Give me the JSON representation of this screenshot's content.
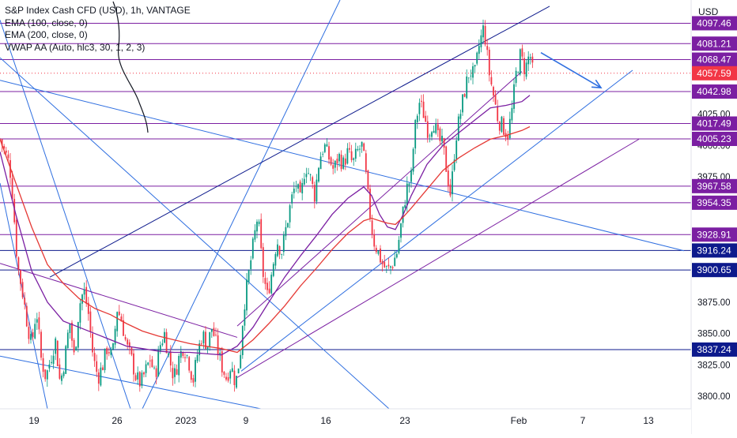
{
  "chart_data": {
    "type": "candlestick",
    "symbol_line": "S&P Index Cash CFD (USD), 1h, VANTAGE",
    "indicators": [
      {
        "label": "EMA (100, close, 0)",
        "color": "#7b1fa2"
      },
      {
        "label": "EMA (200, close, 0)",
        "color": "#e53935"
      },
      {
        "label": "VWAP AA (Auto, hlc3, 30, 1, 2, 3)",
        "color": "#2962ff"
      }
    ],
    "currency": "USD",
    "ylim": [
      3790,
      4116
    ],
    "y_ticks": [
      {
        "value": 3800,
        "label": "3800.00"
      },
      {
        "value": 3825,
        "label": "3825.00"
      },
      {
        "value": 3850,
        "label": "3850.00"
      },
      {
        "value": 3875,
        "label": "3875.00"
      },
      {
        "value": 3975,
        "label": "3975.00"
      },
      {
        "value": 4000,
        "label": "4000.00"
      },
      {
        "value": 4025,
        "label": "4025.00"
      }
    ],
    "x_ticks": [
      "19",
      "26",
      "2023",
      "9",
      "16",
      "23",
      "Feb",
      "7",
      "13"
    ],
    "price_levels": [
      {
        "value": 4097.46,
        "label": "4097.46",
        "kind": "purple"
      },
      {
        "value": 4081.21,
        "label": "4081.21",
        "kind": "purple"
      },
      {
        "value": 4068.47,
        "label": "4068.47",
        "kind": "purple"
      },
      {
        "value": 4057.59,
        "label": "4057.59",
        "kind": "current"
      },
      {
        "value": 4042.98,
        "label": "4042.98",
        "kind": "purple"
      },
      {
        "value": 4017.49,
        "label": "4017.49",
        "kind": "purple"
      },
      {
        "value": 4005.23,
        "label": "4005.23",
        "kind": "purple"
      },
      {
        "value": 3967.58,
        "label": "3967.58",
        "kind": "purple"
      },
      {
        "value": 3954.35,
        "label": "3954.35",
        "kind": "purple"
      },
      {
        "value": 3928.91,
        "label": "3928.91",
        "kind": "purple"
      },
      {
        "value": 3916.24,
        "label": "3916.24",
        "kind": "navy"
      },
      {
        "value": 3900.65,
        "label": "3900.65",
        "kind": "navy"
      },
      {
        "value": 3837.24,
        "label": "3837.24",
        "kind": "navy"
      }
    ],
    "price_series": [
      {
        "x": 0,
        "close": 4005
      },
      {
        "x": 12,
        "close": 3985
      },
      {
        "x": 16,
        "close": 3960
      },
      {
        "x": 22,
        "close": 3905
      },
      {
        "x": 28,
        "close": 3885
      },
      {
        "x": 34,
        "close": 3860
      },
      {
        "x": 40,
        "close": 3840
      },
      {
        "x": 46,
        "close": 3870
      },
      {
        "x": 52,
        "close": 3830
      },
      {
        "x": 58,
        "close": 3815
      },
      {
        "x": 64,
        "close": 3830
      },
      {
        "x": 70,
        "close": 3845
      },
      {
        "x": 76,
        "close": 3810
      },
      {
        "x": 82,
        "close": 3830
      },
      {
        "x": 88,
        "close": 3860
      },
      {
        "x": 94,
        "close": 3830
      },
      {
        "x": 100,
        "close": 3872
      },
      {
        "x": 106,
        "close": 3885
      },
      {
        "x": 112,
        "close": 3865
      },
      {
        "x": 118,
        "close": 3830
      },
      {
        "x": 124,
        "close": 3815
      },
      {
        "x": 130,
        "close": 3825
      },
      {
        "x": 136,
        "close": 3840
      },
      {
        "x": 142,
        "close": 3830
      },
      {
        "x": 148,
        "close": 3870
      },
      {
        "x": 154,
        "close": 3860
      },
      {
        "x": 160,
        "close": 3840
      },
      {
        "x": 166,
        "close": 3830
      },
      {
        "x": 172,
        "close": 3815
      },
      {
        "x": 178,
        "close": 3810
      },
      {
        "x": 184,
        "close": 3820
      },
      {
        "x": 190,
        "close": 3830
      },
      {
        "x": 196,
        "close": 3815
      },
      {
        "x": 202,
        "close": 3840
      },
      {
        "x": 208,
        "close": 3850
      },
      {
        "x": 214,
        "close": 3830
      },
      {
        "x": 220,
        "close": 3815
      },
      {
        "x": 226,
        "close": 3830
      },
      {
        "x": 232,
        "close": 3840
      },
      {
        "x": 238,
        "close": 3830
      },
      {
        "x": 244,
        "close": 3812
      },
      {
        "x": 250,
        "close": 3835
      },
      {
        "x": 256,
        "close": 3850
      },
      {
        "x": 262,
        "close": 3840
      },
      {
        "x": 268,
        "close": 3855
      },
      {
        "x": 274,
        "close": 3840
      },
      {
        "x": 280,
        "close": 3825
      },
      {
        "x": 286,
        "close": 3815
      },
      {
        "x": 292,
        "close": 3825
      },
      {
        "x": 298,
        "close": 3810
      },
      {
        "x": 304,
        "close": 3835
      },
      {
        "x": 308,
        "close": 3870
      },
      {
        "x": 314,
        "close": 3895
      },
      {
        "x": 320,
        "close": 3920
      },
      {
        "x": 326,
        "close": 3945
      },
      {
        "x": 332,
        "close": 3900
      },
      {
        "x": 338,
        "close": 3880
      },
      {
        "x": 344,
        "close": 3900
      },
      {
        "x": 350,
        "close": 3925
      },
      {
        "x": 356,
        "close": 3915
      },
      {
        "x": 362,
        "close": 3935
      },
      {
        "x": 368,
        "close": 3955
      },
      {
        "x": 374,
        "close": 3970
      },
      {
        "x": 380,
        "close": 3955
      },
      {
        "x": 386,
        "close": 3985
      },
      {
        "x": 392,
        "close": 3975
      },
      {
        "x": 398,
        "close": 3960
      },
      {
        "x": 404,
        "close": 3990
      },
      {
        "x": 410,
        "close": 4000
      },
      {
        "x": 416,
        "close": 3990
      },
      {
        "x": 422,
        "close": 3980
      },
      {
        "x": 428,
        "close": 3992
      },
      {
        "x": 434,
        "close": 3985
      },
      {
        "x": 440,
        "close": 3995
      },
      {
        "x": 446,
        "close": 3985
      },
      {
        "x": 452,
        "close": 3995
      },
      {
        "x": 458,
        "close": 4000
      },
      {
        "x": 462,
        "close": 3980
      },
      {
        "x": 466,
        "close": 3955
      },
      {
        "x": 472,
        "close": 3925
      },
      {
        "x": 478,
        "close": 3915
      },
      {
        "x": 484,
        "close": 3905
      },
      {
        "x": 490,
        "close": 3900
      },
      {
        "x": 496,
        "close": 3905
      },
      {
        "x": 502,
        "close": 3915
      },
      {
        "x": 508,
        "close": 3940
      },
      {
        "x": 514,
        "close": 3965
      },
      {
        "x": 520,
        "close": 3975
      },
      {
        "x": 524,
        "close": 4010
      },
      {
        "x": 530,
        "close": 4035
      },
      {
        "x": 536,
        "close": 4025
      },
      {
        "x": 542,
        "close": 4010
      },
      {
        "x": 548,
        "close": 4020
      },
      {
        "x": 554,
        "close": 4005
      },
      {
        "x": 560,
        "close": 4000
      },
      {
        "x": 566,
        "close": 3975
      },
      {
        "x": 570,
        "close": 3960
      },
      {
        "x": 576,
        "close": 4005
      },
      {
        "x": 582,
        "close": 4025
      },
      {
        "x": 588,
        "close": 4045
      },
      {
        "x": 594,
        "close": 4060
      },
      {
        "x": 600,
        "close": 4055
      },
      {
        "x": 606,
        "close": 4080
      },
      {
        "x": 612,
        "close": 4095
      },
      {
        "x": 618,
        "close": 4060
      },
      {
        "x": 624,
        "close": 4040
      },
      {
        "x": 630,
        "close": 4020
      },
      {
        "x": 636,
        "close": 4015
      },
      {
        "x": 642,
        "close": 4008
      },
      {
        "x": 648,
        "close": 4030
      },
      {
        "x": 652,
        "close": 4055
      },
      {
        "x": 658,
        "close": 4072
      },
      {
        "x": 664,
        "close": 4060
      },
      {
        "x": 670,
        "close": 4074
      },
      {
        "x": 674,
        "close": 4057
      }
    ],
    "ema100": [
      [
        0,
        3995
      ],
      [
        20,
        3945
      ],
      [
        40,
        3900
      ],
      [
        60,
        3875
      ],
      [
        80,
        3860
      ],
      [
        100,
        3855
      ],
      [
        120,
        3850
      ],
      [
        140,
        3845
      ],
      [
        160,
        3840
      ],
      [
        180,
        3838
      ],
      [
        200,
        3836
      ],
      [
        220,
        3835
      ],
      [
        240,
        3835
      ],
      [
        260,
        3834
      ],
      [
        280,
        3833
      ],
      [
        300,
        3840
      ],
      [
        320,
        3855
      ],
      [
        340,
        3875
      ],
      [
        360,
        3895
      ],
      [
        380,
        3912
      ],
      [
        400,
        3928
      ],
      [
        420,
        3945
      ],
      [
        440,
        3958
      ],
      [
        460,
        3967
      ],
      [
        470,
        3960
      ],
      [
        480,
        3945
      ],
      [
        490,
        3935
      ],
      [
        500,
        3933
      ],
      [
        510,
        3945
      ],
      [
        520,
        3960
      ],
      [
        540,
        3985
      ],
      [
        560,
        4000
      ],
      [
        580,
        4010
      ],
      [
        600,
        4020
      ],
      [
        620,
        4030
      ],
      [
        640,
        4032
      ],
      [
        660,
        4035
      ],
      [
        670,
        4040
      ]
    ],
    "ema200": [
      [
        0,
        4005
      ],
      [
        20,
        3970
      ],
      [
        40,
        3935
      ],
      [
        60,
        3905
      ],
      [
        80,
        3890
      ],
      [
        100,
        3878
      ],
      [
        120,
        3870
      ],
      [
        140,
        3865
      ],
      [
        160,
        3858
      ],
      [
        180,
        3852
      ],
      [
        200,
        3848
      ],
      [
        220,
        3845
      ],
      [
        240,
        3842
      ],
      [
        260,
        3840
      ],
      [
        280,
        3838
      ],
      [
        300,
        3835
      ],
      [
        320,
        3845
      ],
      [
        340,
        3858
      ],
      [
        360,
        3872
      ],
      [
        380,
        3888
      ],
      [
        400,
        3902
      ],
      [
        420,
        3917
      ],
      [
        440,
        3930
      ],
      [
        460,
        3940
      ],
      [
        470,
        3942
      ],
      [
        480,
        3940
      ],
      [
        490,
        3938
      ],
      [
        500,
        3937
      ],
      [
        510,
        3943
      ],
      [
        520,
        3950
      ],
      [
        540,
        3965
      ],
      [
        560,
        3980
      ],
      [
        580,
        3990
      ],
      [
        600,
        3998
      ],
      [
        620,
        4005
      ],
      [
        640,
        4008
      ],
      [
        660,
        4012
      ],
      [
        670,
        4015
      ]
    ],
    "trendlines": [
      {
        "points": [
          [
            0,
            4070
          ],
          [
            492,
            3790
          ]
        ],
        "kind": "blue"
      },
      {
        "points": [
          [
            0,
            4100
          ],
          [
            165,
            3790
          ]
        ],
        "kind": "blue"
      },
      {
        "points": [
          [
            0,
            3970
          ],
          [
            60,
            3790
          ]
        ],
        "kind": "blue"
      },
      {
        "points": [
          [
            0,
            3832
          ],
          [
            330,
            3790
          ]
        ],
        "kind": "blue"
      },
      {
        "points": [
          [
            180,
            3790
          ],
          [
            430,
            4116
          ]
        ],
        "kind": "blue"
      },
      {
        "points": [
          [
            63,
            3895
          ],
          [
            695,
            4111
          ]
        ],
        "kind": "navy"
      },
      {
        "points": [
          [
            305,
            3820
          ],
          [
            800,
            4060
          ]
        ],
        "kind": "blue"
      },
      {
        "points": [
          [
            0,
            3906
          ],
          [
            300,
            3847
          ]
        ],
        "kind": "purple"
      },
      {
        "points": [
          [
            300,
            3856
          ],
          [
            660,
            4059
          ]
        ],
        "kind": "purple"
      },
      {
        "points": [
          [
            300,
            3815
          ],
          [
            808,
            4005
          ]
        ],
        "kind": "purple"
      },
      {
        "points": [
          [
            0,
            4052
          ],
          [
            865,
            3916
          ]
        ],
        "kind": "blue"
      }
    ],
    "arrow": {
      "from": [
        684,
        4074
      ],
      "to": [
        760,
        4046
      ]
    },
    "grid": false,
    "legend": "top-left"
  }
}
